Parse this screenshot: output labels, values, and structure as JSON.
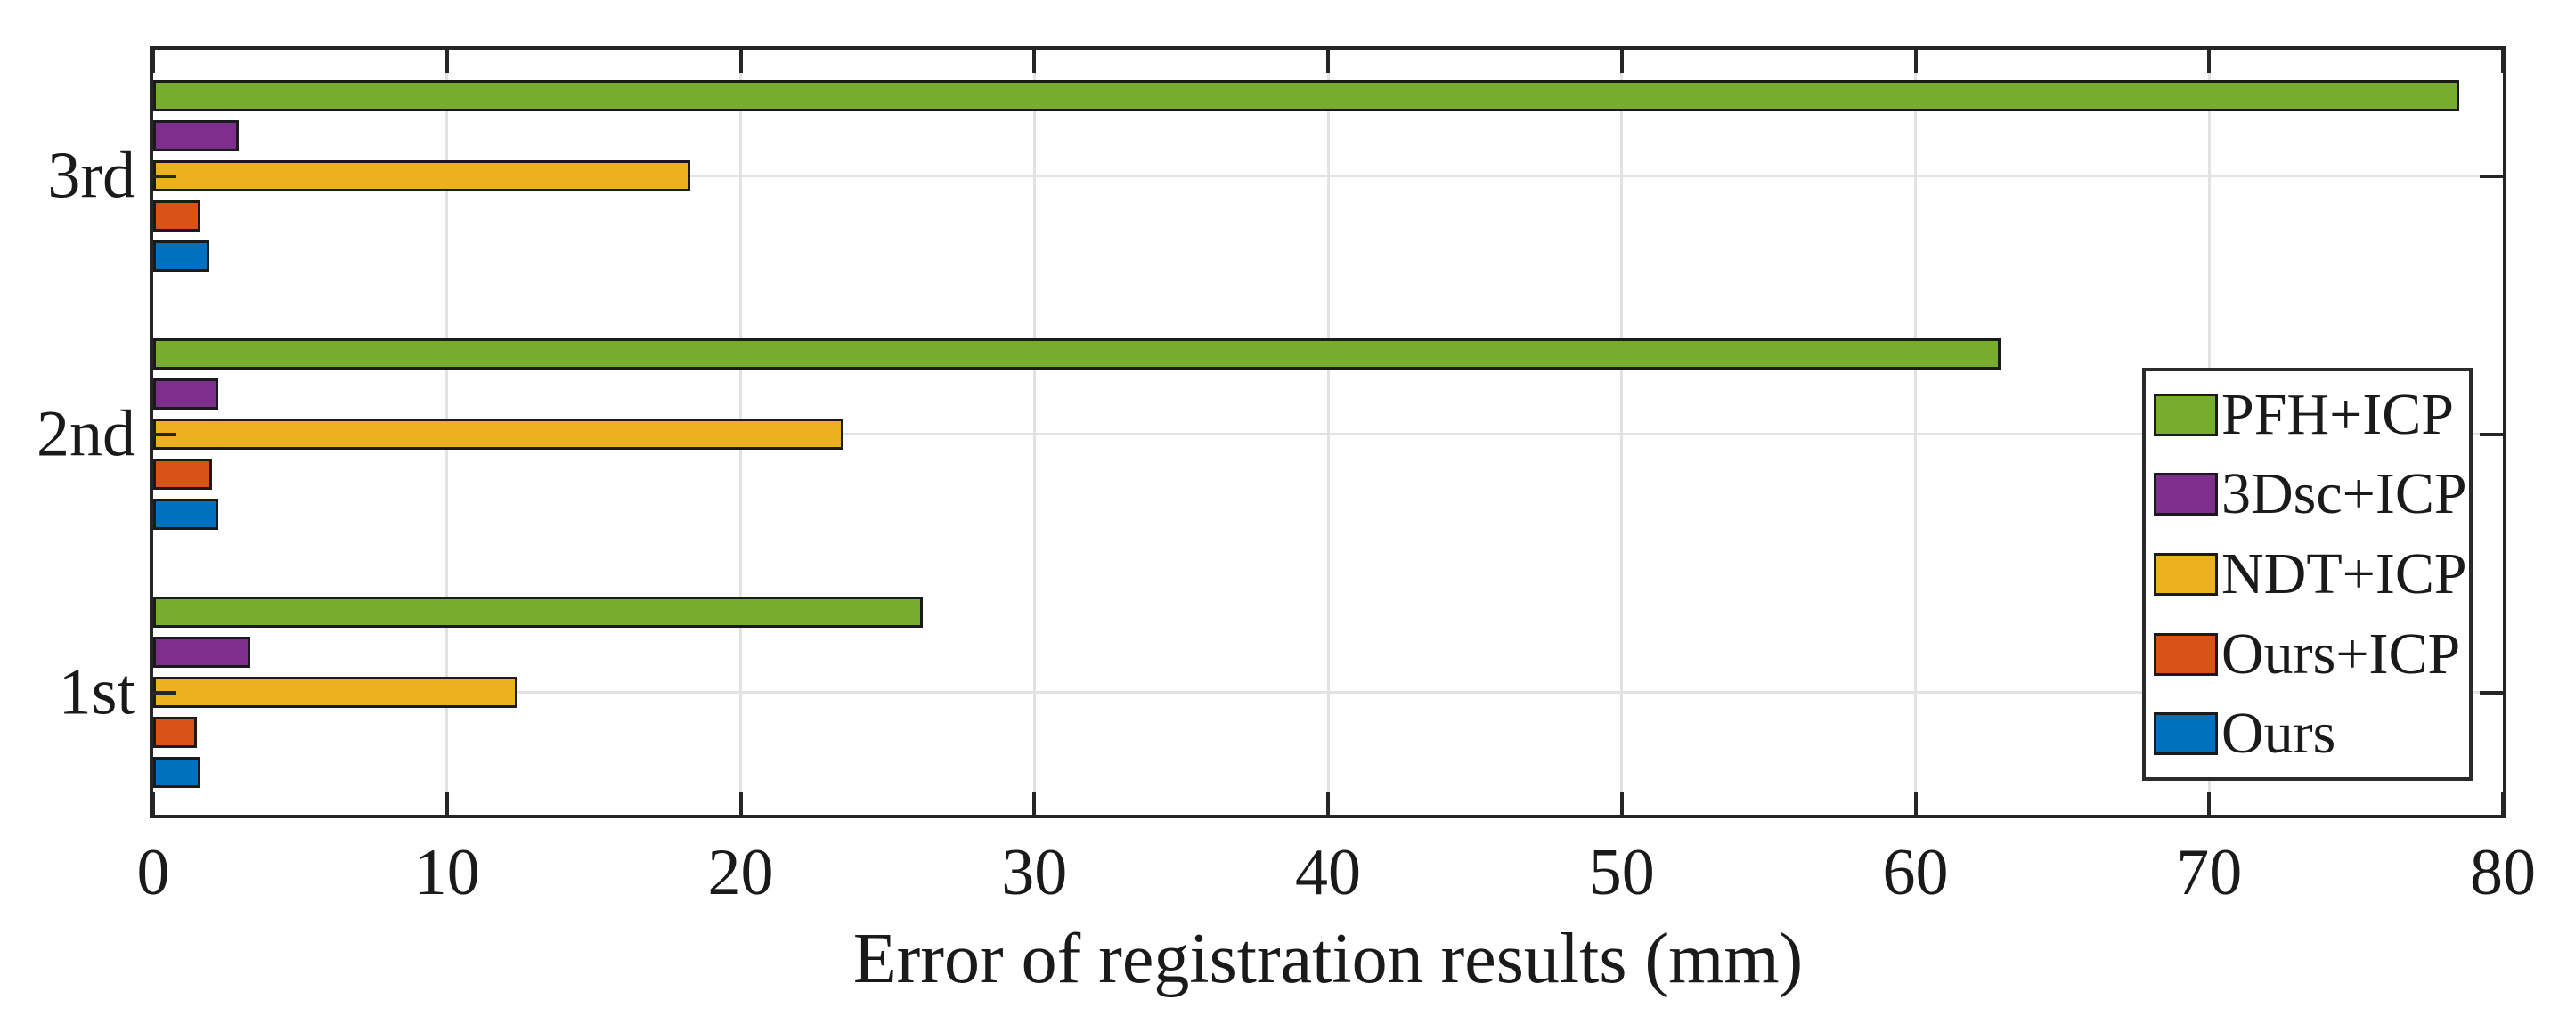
{
  "chart_data": {
    "type": "bar",
    "orientation": "horizontal",
    "title": "",
    "xlabel": "Error of registration results (mm)",
    "ylabel": "",
    "xlim": [
      0,
      80
    ],
    "x_ticks": [
      "0",
      "10",
      "20",
      "30",
      "40",
      "50",
      "60",
      "70",
      "80"
    ],
    "grid": "on",
    "categories_top_to_bottom": [
      "3rd",
      "2nd",
      "1st"
    ],
    "series": [
      {
        "name": "PFH+ICP",
        "color": "#77AC30",
        "values": {
          "3rd": 78.5,
          "2nd": 62.9,
          "1st": 26.2
        }
      },
      {
        "name": "3Dsc+ICP",
        "color": "#7E2F8E",
        "values": {
          "3rd": 2.9,
          "2nd": 2.2,
          "1st": 3.3
        }
      },
      {
        "name": "NDT+ICP",
        "color": "#EDB120",
        "values": {
          "3rd": 18.3,
          "2nd": 23.5,
          "1st": 12.4
        }
      },
      {
        "name": "Ours+ICP",
        "color": "#D95319",
        "values": {
          "3rd": 1.6,
          "2nd": 2.0,
          "1st": 1.5
        }
      },
      {
        "name": "Ours",
        "color": "#0072BD",
        "values": {
          "3rd": 1.9,
          "2nd": 2.2,
          "1st": 1.6
        }
      }
    ],
    "legend": {
      "position": "inside-right",
      "entries": [
        "PFH+ICP",
        "3Dsc+ICP",
        "NDT+ICP",
        "Ours+ICP",
        "Ours"
      ]
    },
    "axis_color": "#262626",
    "grid_color": "#e2e2e2",
    "bar_edge_color": "#1a1a1a"
  }
}
